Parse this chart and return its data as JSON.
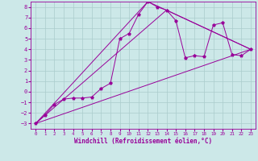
{
  "xlabel": "Windchill (Refroidissement éolien,°C)",
  "ylabel": "",
  "xlim": [
    -0.5,
    23.5
  ],
  "ylim": [
    -3.5,
    8.5
  ],
  "xticks": [
    0,
    1,
    2,
    3,
    4,
    5,
    6,
    7,
    8,
    9,
    10,
    11,
    12,
    13,
    14,
    15,
    16,
    17,
    18,
    19,
    20,
    21,
    22,
    23
  ],
  "yticks": [
    -3,
    -2,
    -1,
    0,
    1,
    2,
    3,
    4,
    5,
    6,
    7,
    8
  ],
  "background_color": "#cce8e8",
  "line_color": "#990099",
  "grid_color": "#aacccc",
  "line1_x": [
    0,
    1,
    2,
    3,
    4,
    5,
    6,
    7,
    8,
    9,
    10,
    11,
    12,
    13,
    14,
    15,
    16,
    17,
    18,
    19,
    20,
    21,
    22,
    23
  ],
  "line1_y": [
    -3.0,
    -2.2,
    -1.2,
    -0.7,
    -0.6,
    -0.6,
    -0.5,
    0.3,
    0.8,
    5.0,
    5.5,
    7.3,
    8.5,
    8.0,
    7.7,
    6.7,
    3.2,
    3.4,
    3.3,
    6.3,
    6.5,
    3.5,
    3.4,
    4.0
  ],
  "line2_x": [
    0,
    23
  ],
  "line2_y": [
    -3.0,
    4.0
  ],
  "line3_x": [
    0,
    12,
    23
  ],
  "line3_y": [
    -3.0,
    8.5,
    4.0
  ],
  "line4_x": [
    0,
    14,
    23
  ],
  "line4_y": [
    -3.0,
    7.7,
    4.0
  ]
}
